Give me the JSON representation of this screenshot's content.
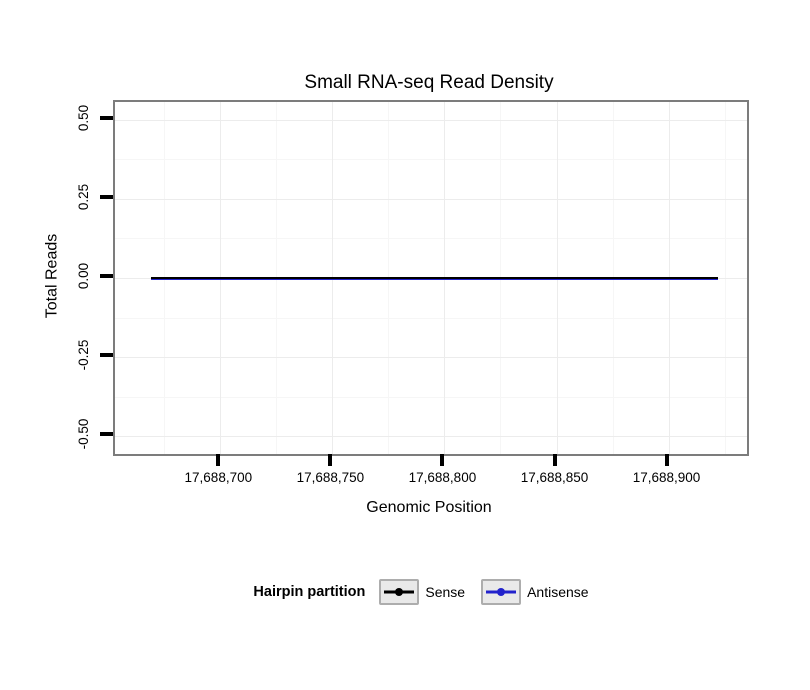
{
  "title": "Small RNA-seq Read Density",
  "axes": {
    "x": {
      "label": "Genomic Position",
      "ticks": [
        "17,688,700",
        "17,688,750",
        "17,688,800",
        "17,688,850",
        "17,688,900"
      ]
    },
    "y": {
      "label": "Total Reads",
      "ticks": [
        "0.50",
        "0.25",
        "0.00",
        "-0.25",
        "-0.50"
      ]
    }
  },
  "legend": {
    "title": "Hairpin partition",
    "entries": [
      {
        "label": "Sense",
        "color": "#000000"
      },
      {
        "label": "Antisense",
        "color": "#2222CC"
      }
    ]
  },
  "chart_data": {
    "type": "line",
    "title": "Small RNA-seq Read Density",
    "xlabel": "Genomic Position",
    "ylabel": "Total Reads",
    "x_domain": [
      17688653,
      17688935
    ],
    "x_ticks": [
      17688700,
      17688750,
      17688800,
      17688850,
      17688900
    ],
    "x_minor_ticks": [
      17688675,
      17688725,
      17688775,
      17688825,
      17688875,
      17688925
    ],
    "ylim": [
      -0.5,
      0.5
    ],
    "y_ticks": [
      0.5,
      0.25,
      0,
      -0.25,
      -0.5
    ],
    "y_minor_ticks": [
      0.375,
      0.125,
      -0.125,
      -0.375
    ],
    "x_extent": [
      17688669,
      17688922
    ],
    "series": [
      {
        "name": "Sense",
        "color": "#000000",
        "value": 0
      },
      {
        "name": "Antisense",
        "color": "#2222CC",
        "value": 0
      }
    ],
    "legend_title": "Hairpin partition",
    "legend_position": "bottom",
    "grid": true
  }
}
